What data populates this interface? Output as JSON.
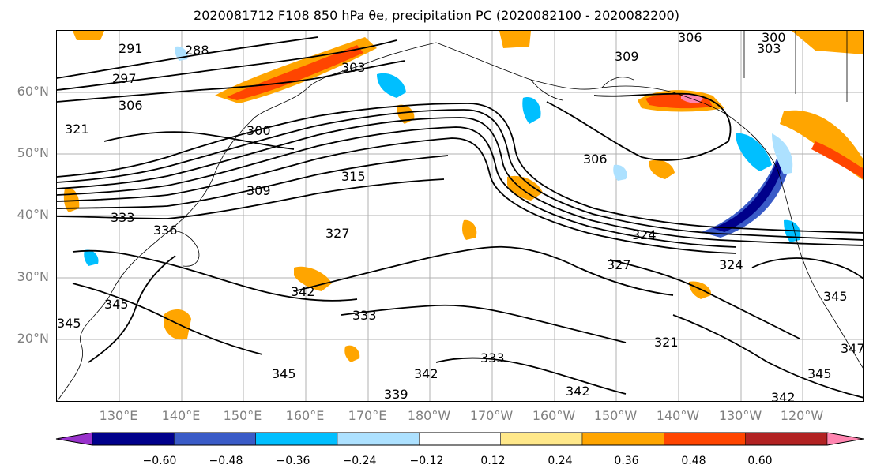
{
  "title": "2020081712 F108 850 hPa θe, precipitation PC (2020082100 - 2020082200)",
  "axes": {
    "lat_labels": [
      "60°N",
      "50°N",
      "40°N",
      "30°N",
      "20°N"
    ],
    "lon_labels": [
      "130°E",
      "140°E",
      "150°E",
      "160°E",
      "170°E",
      "180°W",
      "170°W",
      "160°W",
      "150°W",
      "140°W",
      "130°W",
      "120°W"
    ]
  },
  "contour_labels": [
    "291",
    "288",
    "297",
    "306",
    "300",
    "303",
    "309",
    "306",
    "321",
    "333",
    "336",
    "315",
    "327",
    "324",
    "327",
    "324",
    "342",
    "333",
    "345",
    "345",
    "342",
    "333",
    "339",
    "342",
    "321",
    "342",
    "345",
    "345",
    "347",
    "345",
    "309",
    "306",
    "303",
    "300"
  ],
  "colorbar": {
    "ticks": [
      "−0.60",
      "−0.48",
      "−0.36",
      "−0.24",
      "−0.12",
      "0.12",
      "0.24",
      "0.36",
      "0.48",
      "0.60"
    ],
    "colors": [
      "#9932CC",
      "#00008B",
      "#3A5BC7",
      "#00BFFF",
      "#ADE1FF",
      "#FFFFFF",
      "#FFE88A",
      "#FFA500",
      "#FF4500",
      "#B22222",
      "#FF85B0"
    ]
  }
}
